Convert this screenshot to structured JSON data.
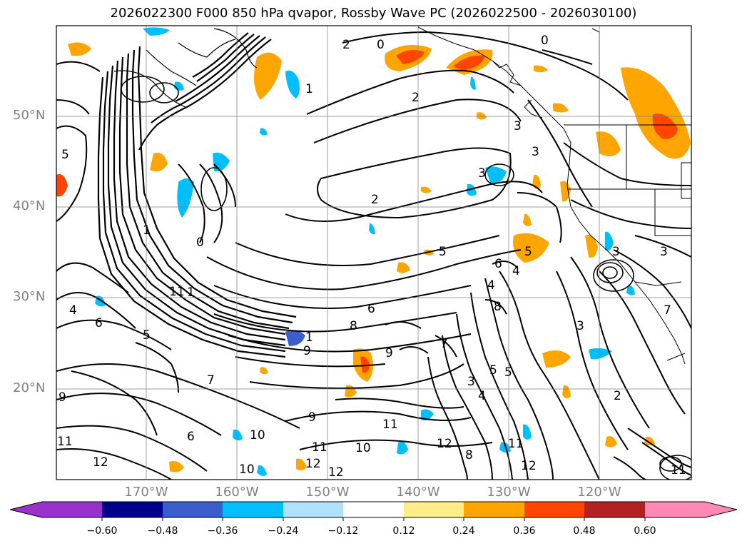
{
  "title": "2026022300 F000 850 hPa qvapor, Rossby Wave PC (2026022500 - 2026030100)",
  "map": {
    "lat_labels": [
      "50°N",
      "40°N",
      "30°N",
      "20°N"
    ],
    "lon_labels": [
      "170°W",
      "160°W",
      "150°W",
      "140°W",
      "130°W",
      "120°W"
    ],
    "contour_labels": [
      "0",
      "1",
      "2",
      "3",
      "4",
      "5",
      "6",
      "7",
      "8",
      "9",
      "10",
      "11",
      "12"
    ]
  },
  "colorbar": {
    "tick_labels": [
      "−0.60",
      "−0.48",
      "−0.36",
      "−0.24",
      "−0.12",
      "0.12",
      "0.24",
      "0.36",
      "0.48",
      "0.60"
    ],
    "colors": [
      "#9932cc",
      "#00008b",
      "#3a5fcd",
      "#00bfff",
      "#b0e2ff",
      "#ffffff",
      "#ffec8b",
      "#ffa500",
      "#ff4500",
      "#b22222",
      "#ff89b4"
    ]
  }
}
